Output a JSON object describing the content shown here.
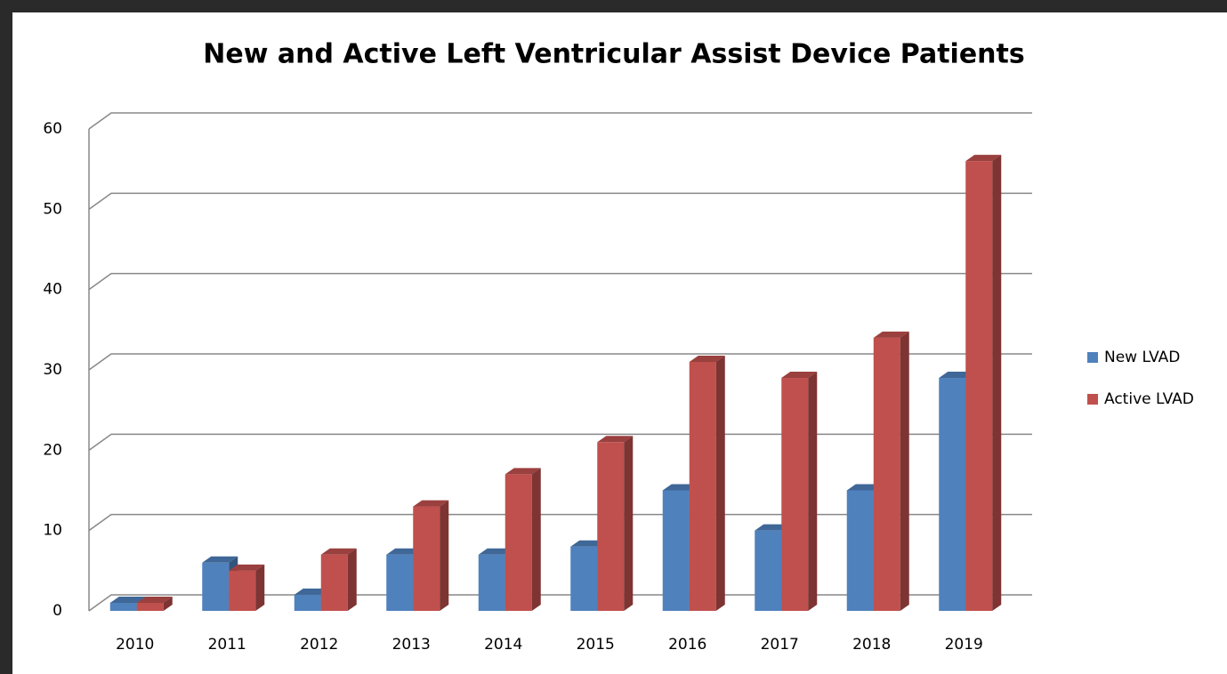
{
  "chart_data": {
    "type": "bar3d",
    "title": "New and Active Left Ventricular Assist Device Patients",
    "categories": [
      "2010",
      "2011",
      "2012",
      "2013",
      "2014",
      "2015",
      "2016",
      "2017",
      "2018",
      "2019"
    ],
    "series": [
      {
        "name": "New LVAD",
        "color": "#4f81bd",
        "values": [
          1,
          6,
          2,
          7,
          7,
          8,
          15,
          10,
          15,
          29
        ]
      },
      {
        "name": "Active LVAD",
        "color": "#c0504d",
        "values": [
          1,
          5,
          7,
          13,
          17,
          21,
          31,
          29,
          34,
          56
        ]
      }
    ],
    "ylim": [
      0,
      60
    ],
    "yticks": [
      0,
      10,
      20,
      30,
      40,
      50,
      60
    ],
    "grid": true,
    "legend": "right"
  }
}
